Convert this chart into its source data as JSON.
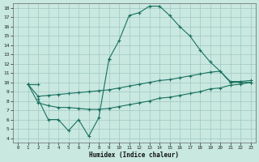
{
  "background_color": "#c8e8e0",
  "grid_color": "#a0c8c0",
  "line_color": "#1a7060",
  "xlabel": "Humidex (Indice chaleur)",
  "xlim": [
    -0.5,
    23.5
  ],
  "ylim": [
    3.5,
    18.5
  ],
  "xticks": [
    0,
    1,
    2,
    3,
    4,
    5,
    6,
    7,
    8,
    9,
    10,
    11,
    12,
    13,
    14,
    15,
    16,
    17,
    18,
    19,
    20,
    21,
    22,
    23
  ],
  "yticks": [
    4,
    5,
    6,
    7,
    8,
    9,
    10,
    11,
    12,
    13,
    14,
    15,
    16,
    17,
    18
  ],
  "line1_x": [
    1,
    2,
    9,
    10,
    11,
    12,
    13,
    14,
    15,
    16,
    17,
    18,
    19,
    20,
    21,
    22,
    23
  ],
  "line1_y": [
    9.8,
    9.8,
    12.5,
    14.5,
    17.2,
    17.5,
    18.2,
    18.2,
    17.2,
    16.0,
    15.0,
    13.5,
    12.2,
    11.2,
    10.0,
    10.0,
    10.0
  ],
  "line2_x": [
    2,
    3,
    4,
    5,
    6,
    7,
    8,
    9
  ],
  "line2_y": [
    8.2,
    6.0,
    6.0,
    4.8,
    6.0,
    4.2,
    6.2,
    12.5
  ],
  "line3_x": [
    1,
    2,
    3,
    4,
    5,
    6,
    7,
    8,
    9,
    10,
    11,
    12,
    13,
    14,
    15,
    16,
    17,
    18,
    19,
    20,
    21,
    22,
    23
  ],
  "line3_y": [
    9.8,
    8.5,
    8.6,
    8.7,
    8.8,
    8.9,
    9.0,
    9.1,
    9.2,
    9.4,
    9.6,
    9.8,
    10.0,
    10.2,
    10.3,
    10.5,
    10.7,
    10.9,
    11.1,
    11.2,
    10.1,
    10.1,
    10.2
  ],
  "line4_x": [
    1,
    2,
    3,
    4,
    5,
    6,
    7,
    8,
    9,
    10,
    11,
    12,
    13,
    14,
    15,
    16,
    17,
    18,
    19,
    20,
    21,
    22,
    23
  ],
  "line4_y": [
    9.8,
    7.8,
    7.5,
    7.3,
    7.3,
    7.2,
    7.1,
    7.1,
    7.2,
    7.4,
    7.6,
    7.8,
    8.0,
    8.3,
    8.4,
    8.6,
    8.8,
    9.0,
    9.3,
    9.4,
    9.7,
    9.8,
    10.0
  ]
}
